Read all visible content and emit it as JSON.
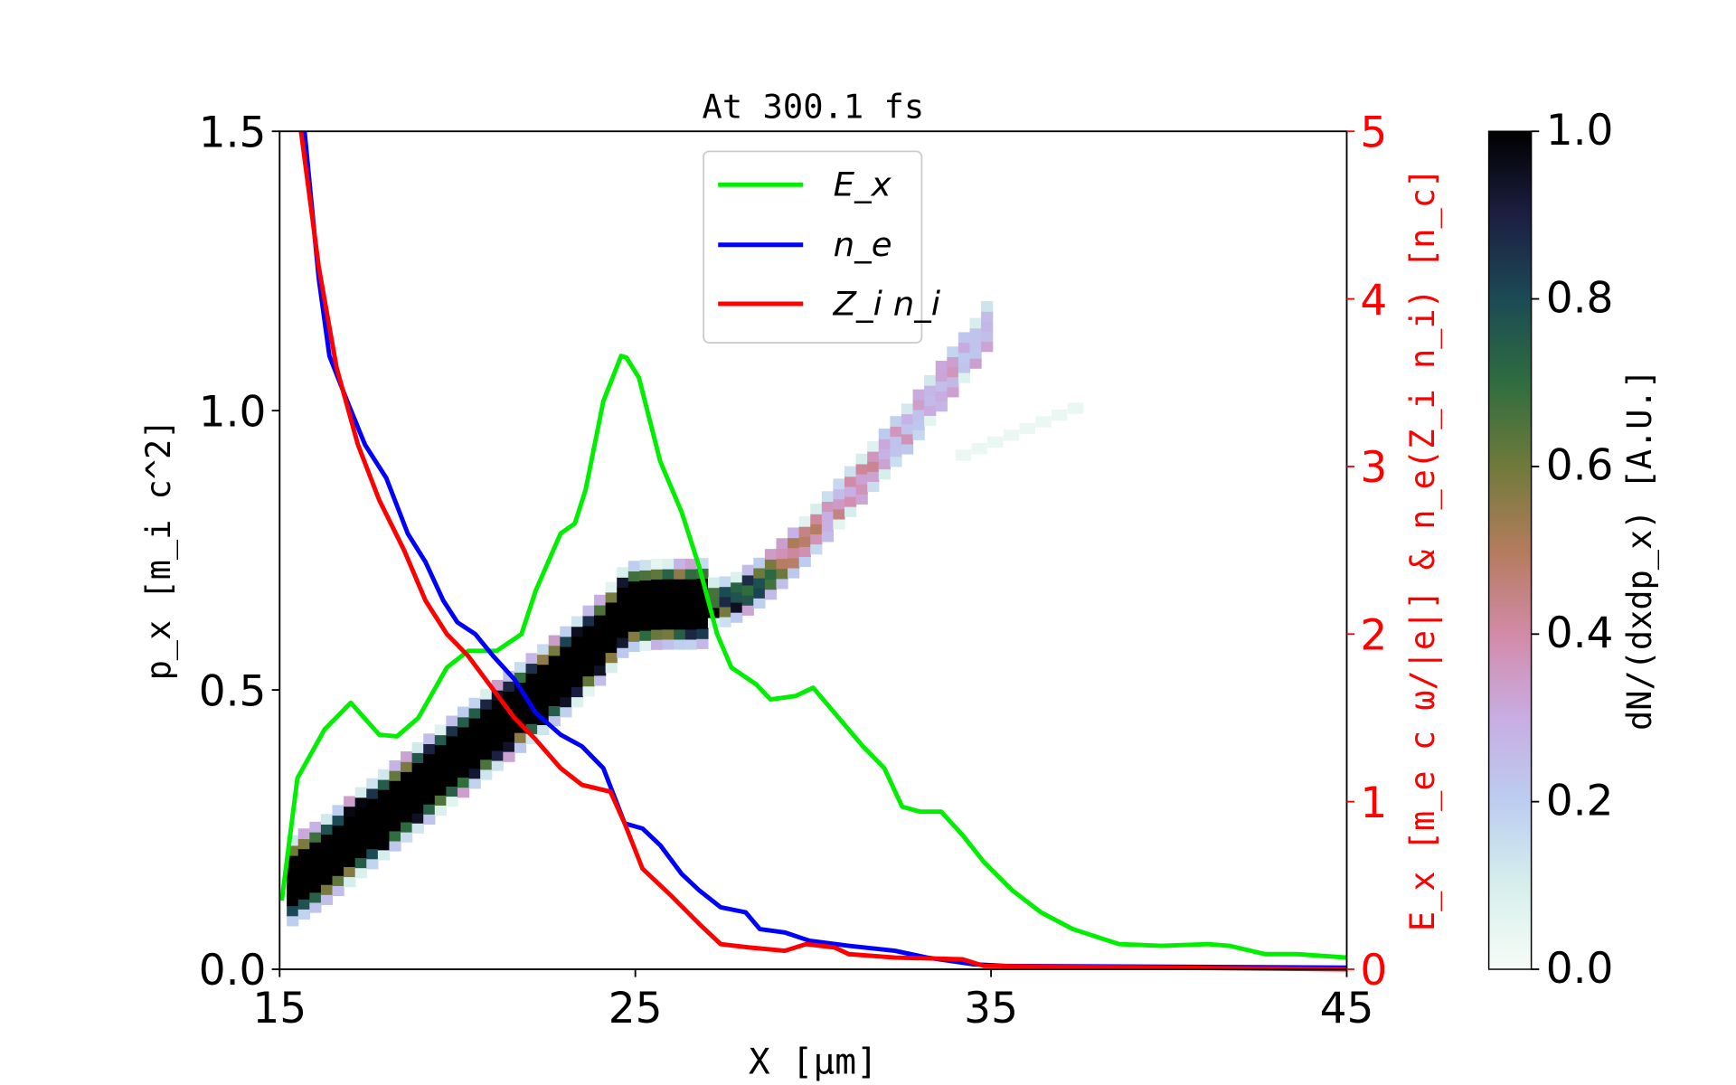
{
  "chart_data": {
    "type": "line",
    "title": "At 300.1 fs",
    "xlabel": "X [μm]",
    "ylabel_left": "p_x [m_i c^2]",
    "ylabel_right": "E_x [m_e c ω/|e|] & n_e(Z_i n_i) [n_c]",
    "colorbar_label": "dN/(dxdp_x) [A.U.]",
    "xlim": [
      15,
      45
    ],
    "ylim_left": [
      0,
      1.5
    ],
    "ylim_right": [
      0,
      5
    ],
    "colorbar_lim": [
      0,
      1.0
    ],
    "x_ticks": [
      "15",
      "25",
      "35",
      "45"
    ],
    "y_ticks_left": [
      "0.0",
      "0.5",
      "1.0",
      "1.5"
    ],
    "y_ticks_right": [
      "0",
      "1",
      "2",
      "3",
      "4",
      "5"
    ],
    "colorbar_ticks": [
      "0.0",
      "0.2",
      "0.4",
      "0.6",
      "0.8",
      "1.0"
    ],
    "legend_position": "upper-center",
    "grid": false,
    "series": [
      {
        "name": "E_x",
        "color": "#00ee00",
        "axis": "right",
        "x": [
          15.06,
          15.5,
          16.26,
          17.0,
          17.8,
          18.3,
          18.9,
          19.7,
          20.3,
          21.1,
          21.8,
          22.2,
          22.9,
          23.3,
          23.6,
          24.1,
          24.6,
          24.75,
          25.1,
          25.7,
          26.3,
          26.8,
          27.3,
          27.7,
          28.4,
          28.8,
          29.5,
          30.0,
          30.6,
          31.4,
          32.0,
          32.5,
          33.0,
          33.6,
          34.2,
          34.8,
          35.6,
          36.4,
          37.3,
          38.6,
          39.8,
          41.1,
          41.7,
          42.7,
          43.6,
          45.0
        ],
        "y": [
          0.41,
          1.14,
          1.43,
          1.59,
          1.4,
          1.39,
          1.5,
          1.8,
          1.9,
          1.9,
          2.0,
          2.26,
          2.6,
          2.66,
          2.86,
          3.39,
          3.66,
          3.65,
          3.53,
          3.03,
          2.73,
          2.4,
          2.0,
          1.8,
          1.7,
          1.61,
          1.63,
          1.68,
          1.53,
          1.33,
          1.2,
          0.97,
          0.94,
          0.94,
          0.8,
          0.64,
          0.47,
          0.34,
          0.24,
          0.15,
          0.14,
          0.15,
          0.14,
          0.09,
          0.09,
          0.07
        ]
      },
      {
        "name": "n_e",
        "color": "#0000ff",
        "axis": "right",
        "x": [
          15.7,
          16.1,
          16.4,
          16.9,
          17.4,
          18.0,
          18.6,
          19.1,
          19.6,
          20.0,
          20.5,
          21.0,
          21.6,
          22.2,
          22.9,
          23.5,
          24.1,
          24.7,
          25.2,
          25.7,
          26.3,
          26.8,
          27.4,
          28.1,
          28.5,
          29.2,
          29.9,
          31.0,
          32.3,
          33.2,
          34.5,
          35.4,
          45.0
        ],
        "y": [
          5.0,
          4.12,
          3.66,
          3.39,
          3.13,
          2.93,
          2.6,
          2.43,
          2.2,
          2.07,
          2.0,
          1.87,
          1.73,
          1.53,
          1.4,
          1.33,
          1.2,
          0.87,
          0.84,
          0.74,
          0.57,
          0.47,
          0.37,
          0.34,
          0.24,
          0.22,
          0.17,
          0.14,
          0.11,
          0.07,
          0.03,
          0.02,
          0.01
        ]
      },
      {
        "name": "Z_i n_i",
        "color": "#ff0000",
        "axis": "right",
        "x": [
          15.6,
          16.1,
          16.6,
          17.2,
          17.8,
          18.5,
          19.1,
          19.7,
          20.3,
          21.0,
          21.6,
          22.2,
          22.9,
          23.5,
          24.3,
          24.7,
          25.2,
          26.0,
          26.8,
          27.4,
          28.2,
          29.2,
          29.8,
          30.6,
          31.0,
          32.3,
          34.2,
          34.8,
          45.0
        ],
        "y": [
          5.0,
          4.19,
          3.59,
          3.13,
          2.8,
          2.5,
          2.2,
          2.0,
          1.87,
          1.67,
          1.5,
          1.37,
          1.2,
          1.1,
          1.06,
          0.87,
          0.6,
          0.44,
          0.27,
          0.15,
          0.13,
          0.11,
          0.15,
          0.13,
          0.09,
          0.07,
          0.06,
          0.02,
          0.0
        ]
      }
    ],
    "heatmap_ridge": {
      "x": [
        15.2,
        16.0,
        17.0,
        18.0,
        19.0,
        20.0,
        21.0,
        22.0,
        23.0,
        24.0,
        24.6,
        25.5,
        26.5,
        27.5,
        28.5,
        29.5,
        30.5,
        31.5,
        32.5,
        33.5,
        34.5,
        35.0
      ],
      "px": [
        0.15,
        0.18,
        0.23,
        0.28,
        0.33,
        0.38,
        0.43,
        0.48,
        0.53,
        0.59,
        0.64,
        0.645,
        0.645,
        0.65,
        0.69,
        0.75,
        0.82,
        0.89,
        0.96,
        1.04,
        1.12,
        1.17
      ],
      "density": [
        1.0,
        1.0,
        1.0,
        1.0,
        1.0,
        1.0,
        1.0,
        1.0,
        1.0,
        1.0,
        1.0,
        1.0,
        1.0,
        0.8,
        0.6,
        0.4,
        0.35,
        0.35,
        0.3,
        0.3,
        0.25,
        0.2
      ]
    }
  },
  "legend": {
    "items": [
      "E_x",
      "n_e",
      "Z_i n_i"
    ]
  }
}
